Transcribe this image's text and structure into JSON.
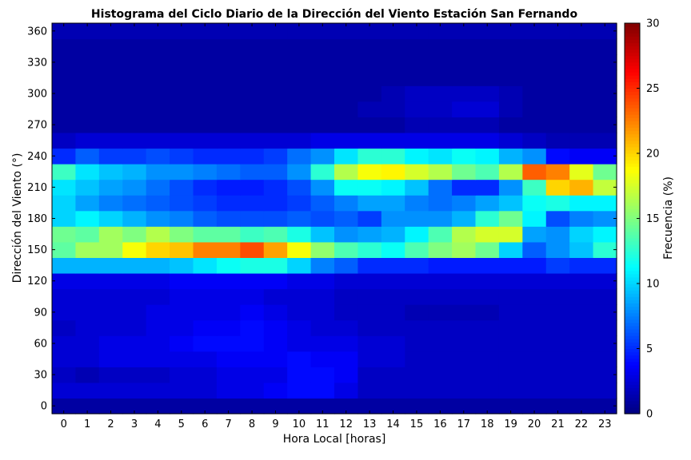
{
  "chart_data": {
    "type": "heatmap",
    "title": "Histograma del Ciclo Diario de la Dirección del Viento Estación San Fernando",
    "xlabel": "Hora Local [horas]",
    "ylabel": "Dirección del Viento (°)",
    "colorbar_label": "Frecuencia (%)",
    "colormap": "jet",
    "color_range": [
      0,
      30
    ],
    "colorbar_ticks": [
      0,
      5,
      10,
      15,
      20,
      25,
      30
    ],
    "x_ticks": [
      0,
      1,
      2,
      3,
      4,
      5,
      6,
      7,
      8,
      9,
      10,
      11,
      12,
      13,
      14,
      15,
      16,
      17,
      18,
      19,
      20,
      21,
      22,
      23
    ],
    "y_ticks": [
      0,
      30,
      60,
      90,
      120,
      150,
      180,
      210,
      240,
      270,
      300,
      330,
      360
    ],
    "hours": [
      0,
      1,
      2,
      3,
      4,
      5,
      6,
      7,
      8,
      9,
      10,
      11,
      12,
      13,
      14,
      15,
      16,
      17,
      18,
      19,
      20,
      21,
      22,
      23
    ],
    "direction_bins": [
      0,
      15,
      30,
      45,
      60,
      75,
      90,
      105,
      120,
      135,
      150,
      165,
      180,
      195,
      210,
      225,
      240,
      255,
      270,
      285,
      300,
      315,
      330,
      345,
      360
    ],
    "values": [
      [
        1.0,
        1.0,
        1.0,
        1.0,
        1.0,
        1.0,
        1.0,
        1.0,
        1.0,
        1.0,
        1.0,
        1.0,
        1.0,
        1.0,
        1.0,
        1.0,
        1.0,
        1.0,
        1.0,
        1.0,
        1.0,
        1.0,
        1.0,
        1.0
      ],
      [
        2.5,
        2.5,
        2.5,
        2.5,
        2.5,
        2.5,
        2.5,
        3.0,
        3.0,
        3.5,
        4.0,
        4.0,
        3.0,
        2.0,
        2.0,
        2.0,
        2.0,
        2.0,
        2.0,
        2.0,
        2.0,
        2.0,
        2.0,
        2.0
      ],
      [
        2.0,
        1.5,
        2.0,
        2.0,
        2.0,
        2.5,
        2.5,
        3.0,
        3.0,
        3.0,
        4.0,
        4.0,
        3.5,
        2.0,
        2.0,
        2.0,
        2.0,
        2.0,
        2.0,
        2.0,
        2.0,
        2.0,
        2.0,
        2.0
      ],
      [
        2.5,
        2.5,
        3.0,
        3.0,
        3.0,
        3.0,
        3.0,
        3.5,
        3.5,
        3.5,
        4.0,
        3.5,
        3.5,
        2.5,
        2.5,
        2.0,
        2.0,
        2.0,
        2.0,
        2.0,
        2.0,
        2.0,
        2.0,
        2.0
      ],
      [
        2.5,
        2.5,
        3.0,
        3.0,
        3.0,
        3.5,
        4.0,
        4.0,
        4.0,
        3.5,
        3.0,
        3.0,
        3.0,
        2.5,
        2.5,
        2.0,
        2.0,
        2.0,
        2.0,
        2.0,
        2.0,
        2.0,
        2.0,
        2.0
      ],
      [
        2.0,
        2.5,
        2.5,
        2.5,
        3.0,
        3.0,
        3.5,
        3.5,
        4.0,
        3.5,
        3.0,
        2.5,
        2.5,
        2.0,
        2.0,
        2.0,
        2.0,
        2.0,
        2.0,
        2.0,
        2.0,
        2.0,
        2.0,
        2.0
      ],
      [
        2.5,
        2.5,
        2.5,
        2.5,
        3.0,
        3.0,
        3.0,
        3.0,
        3.5,
        3.0,
        2.5,
        2.5,
        2.0,
        2.0,
        2.0,
        1.5,
        1.5,
        1.5,
        1.5,
        2.0,
        2.0,
        2.0,
        2.0,
        2.0
      ],
      [
        2.5,
        2.5,
        2.5,
        2.5,
        2.5,
        3.0,
        3.0,
        3.0,
        3.0,
        2.5,
        2.5,
        2.5,
        2.0,
        2.0,
        2.0,
        2.0,
        2.0,
        2.0,
        2.0,
        2.0,
        2.0,
        2.0,
        2.0,
        2.0
      ],
      [
        3.0,
        3.0,
        3.0,
        3.0,
        3.0,
        3.5,
        3.5,
        3.5,
        3.5,
        3.5,
        3.0,
        3.0,
        2.5,
        2.5,
        2.5,
        2.5,
        2.5,
        2.5,
        2.5,
        2.5,
        2.5,
        2.5,
        2.5,
        2.5
      ],
      [
        9.0,
        9.0,
        9.0,
        9.0,
        9.0,
        9.5,
        10.5,
        11.5,
        12.0,
        12.0,
        10.0,
        7.5,
        6.5,
        5.0,
        5.0,
        5.0,
        4.5,
        4.5,
        4.5,
        4.5,
        4.5,
        5.5,
        5.0,
        5.0
      ],
      [
        14.0,
        16.0,
        16.0,
        18.5,
        20.0,
        20.5,
        22.5,
        22.5,
        24.0,
        21.5,
        18.5,
        15.5,
        13.5,
        12.5,
        11.5,
        13.5,
        15.0,
        16.0,
        14.5,
        10.0,
        6.5,
        8.0,
        9.5,
        12.5
      ],
      [
        14.5,
        14.0,
        16.0,
        15.0,
        16.5,
        15.0,
        14.0,
        14.0,
        13.0,
        13.5,
        12.0,
        9.5,
        8.0,
        8.5,
        9.0,
        11.0,
        13.5,
        16.5,
        17.5,
        17.5,
        8.5,
        8.0,
        10.0,
        11.0
      ],
      [
        10.0,
        11.0,
        10.0,
        9.0,
        8.0,
        7.5,
        6.5,
        6.0,
        6.0,
        6.0,
        6.5,
        6.0,
        6.5,
        5.5,
        8.0,
        8.0,
        8.0,
        9.0,
        12.5,
        14.5,
        11.0,
        6.0,
        7.5,
        8.0
      ],
      [
        10.0,
        8.5,
        7.5,
        7.0,
        6.5,
        6.0,
        5.5,
        5.0,
        5.0,
        5.0,
        5.5,
        6.5,
        7.5,
        8.5,
        8.5,
        7.5,
        7.0,
        7.5,
        8.5,
        9.5,
        11.5,
        12.0,
        11.0,
        11.0
      ],
      [
        10.5,
        9.5,
        8.5,
        8.0,
        7.0,
        6.0,
        5.0,
        4.5,
        4.5,
        5.0,
        6.0,
        8.0,
        11.5,
        11.5,
        11.0,
        9.5,
        7.0,
        5.0,
        5.0,
        8.0,
        13.0,
        20.0,
        21.0,
        17.0
      ],
      [
        13.0,
        10.5,
        9.5,
        9.0,
        8.0,
        8.0,
        7.5,
        7.0,
        6.5,
        6.5,
        8.0,
        12.5,
        16.5,
        18.5,
        19.0,
        17.5,
        16.5,
        14.5,
        13.5,
        16.5,
        23.5,
        22.5,
        18.0,
        14.5
      ],
      [
        5.0,
        6.5,
        5.5,
        5.5,
        6.0,
        5.5,
        5.0,
        5.0,
        5.0,
        5.5,
        7.0,
        8.0,
        10.5,
        12.5,
        12.5,
        11.0,
        10.5,
        11.5,
        11.0,
        9.0,
        8.0,
        4.0,
        3.5,
        3.5
      ],
      [
        2.0,
        2.5,
        2.5,
        2.5,
        2.5,
        2.5,
        2.5,
        2.5,
        2.5,
        2.5,
        2.5,
        3.0,
        3.0,
        3.0,
        3.0,
        3.0,
        3.0,
        3.0,
        3.0,
        2.5,
        2.0,
        1.5,
        1.5,
        1.5
      ],
      [
        1.0,
        1.0,
        1.0,
        1.0,
        1.0,
        1.0,
        1.0,
        1.0,
        1.0,
        1.0,
        1.0,
        1.0,
        1.0,
        1.0,
        1.0,
        1.5,
        1.5,
        1.5,
        1.5,
        1.0,
        1.0,
        1.0,
        1.0,
        1.0
      ],
      [
        1.0,
        1.0,
        1.0,
        1.0,
        1.0,
        1.0,
        1.0,
        1.0,
        1.0,
        1.0,
        1.0,
        1.0,
        1.0,
        1.5,
        1.5,
        2.0,
        2.0,
        2.5,
        2.5,
        1.5,
        1.0,
        1.0,
        1.0,
        1.0
      ],
      [
        1.0,
        1.0,
        1.0,
        1.0,
        1.0,
        1.0,
        1.0,
        1.0,
        1.0,
        1.0,
        1.0,
        1.0,
        1.0,
        1.0,
        1.5,
        2.0,
        2.0,
        2.0,
        2.0,
        1.5,
        1.0,
        1.0,
        1.0,
        1.0
      ],
      [
        1.0,
        1.0,
        1.0,
        1.0,
        1.0,
        1.0,
        1.0,
        1.0,
        1.0,
        1.0,
        1.0,
        1.0,
        1.0,
        1.0,
        1.0,
        1.0,
        1.0,
        1.0,
        1.0,
        1.0,
        1.0,
        1.0,
        1.0,
        1.0
      ],
      [
        1.0,
        1.0,
        1.0,
        1.0,
        1.0,
        1.0,
        1.0,
        1.0,
        1.0,
        1.0,
        1.0,
        1.0,
        1.0,
        1.0,
        1.0,
        1.0,
        1.0,
        1.0,
        1.0,
        1.0,
        1.0,
        1.0,
        1.0,
        1.0
      ],
      [
        1.0,
        1.0,
        1.0,
        1.0,
        1.0,
        1.0,
        1.0,
        1.0,
        1.0,
        1.0,
        1.0,
        1.0,
        1.0,
        1.0,
        1.0,
        1.0,
        1.0,
        1.0,
        1.0,
        1.0,
        1.0,
        1.0,
        1.0,
        1.0
      ],
      [
        1.5,
        1.5,
        1.5,
        1.5,
        1.5,
        1.5,
        1.5,
        1.5,
        1.5,
        1.5,
        1.5,
        1.5,
        1.5,
        1.5,
        1.5,
        1.5,
        1.5,
        1.5,
        1.5,
        1.5,
        1.5,
        1.5,
        1.5,
        1.5
      ]
    ]
  }
}
